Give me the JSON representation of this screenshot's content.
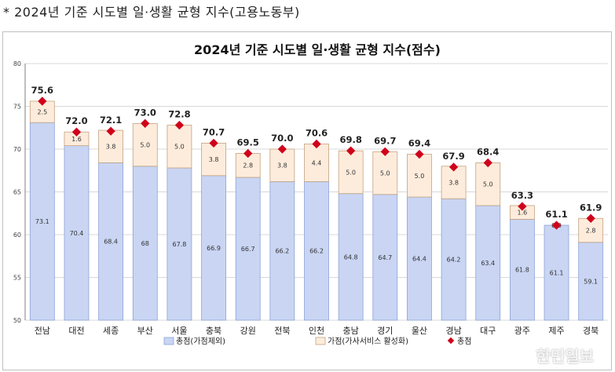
{
  "caption": "* 2024년 기준 시도별 일·생활 균형 지수(고용노동부)",
  "watermark": "한민일보",
  "colors": {
    "base_fill": "#c9d5f3",
    "base_stroke": "#8da3d6",
    "add_fill": "#fdecdc",
    "add_stroke": "#c4a27e",
    "marker": "#d0021b",
    "grid": "#d9d9d9",
    "axis": "#7f7f7f"
  },
  "chart_data": {
    "type": "bar",
    "title": "2024년 기준 시도별 일·생활 균형 지수(점수)",
    "ylim": [
      50,
      80
    ],
    "yticks": [
      "50",
      "55",
      "60",
      "65",
      "70",
      "75",
      "80"
    ],
    "categories": [
      "전남",
      "대전",
      "세종",
      "부산",
      "서울",
      "충북",
      "강원",
      "전북",
      "인천",
      "충남",
      "경기",
      "울산",
      "경남",
      "대구",
      "광주",
      "제주",
      "경북"
    ],
    "series": [
      {
        "name": "총점(가점제외)",
        "kind": "stacked-base",
        "values": [
          73.1,
          70.4,
          68.4,
          68,
          67.8,
          66.9,
          66.7,
          66.2,
          66.2,
          64.8,
          64.7,
          64.4,
          64.2,
          63.4,
          61.8,
          61.1,
          59.1
        ],
        "labels": [
          "73.1",
          "70.4",
          "68.4",
          "68",
          "67.8",
          "66.9",
          "66.7",
          "66.2",
          "66.2",
          "64.8",
          "64.7",
          "64.4",
          "64.2",
          "63.4",
          "61.8",
          "61.1",
          "59.1"
        ]
      },
      {
        "name": "가점(가사서비스 활성화)",
        "kind": "stacked-top",
        "values": [
          2.5,
          1.6,
          3.8,
          5.0,
          5.0,
          3.8,
          2.8,
          3.8,
          4.4,
          5.0,
          5.0,
          5.0,
          3.8,
          5.0,
          1.6,
          0.0,
          2.8
        ],
        "labels": [
          "2.5",
          "1.6",
          "3.8",
          "5.0",
          "5.0",
          "3.8",
          "2.8",
          "3.8",
          "4.4",
          "5.0",
          "5.0",
          "5.0",
          "3.8",
          "5.0",
          "1.6",
          "0.0",
          "2.8"
        ]
      },
      {
        "name": "총점",
        "kind": "marker",
        "values": [
          75.6,
          72.0,
          72.1,
          73.0,
          72.8,
          70.7,
          69.5,
          70.0,
          70.6,
          69.8,
          69.7,
          69.4,
          67.9,
          68.4,
          63.3,
          61.1,
          61.9
        ],
        "labels": [
          "75.6",
          "72.0",
          "72.1",
          "73.0",
          "72.8",
          "70.7",
          "69.5",
          "70.0",
          "70.6",
          "69.8",
          "69.7",
          "69.4",
          "67.9",
          "68.4",
          "63.3",
          "61.1",
          "61.9"
        ]
      }
    ],
    "legend": "bottom"
  }
}
